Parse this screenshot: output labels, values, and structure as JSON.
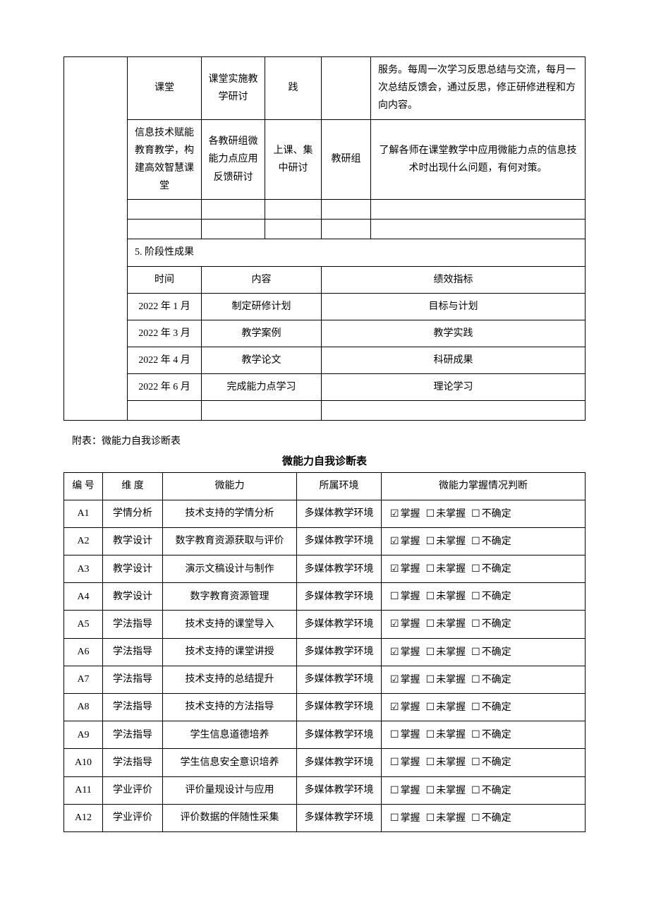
{
  "table1": {
    "row1": {
      "col2": "课堂",
      "col3": "课堂实施教学研讨",
      "col4": "践",
      "col5": "",
      "col6": "服务。每周一次学习反思总结与交流，每月一次总结反馈会，通过反思，修正研修进程和方向内容。"
    },
    "row2": {
      "col2": "信息技术赋能教育教学，构建高效智慧课堂",
      "col3": "各教研组微能力点应用反馈研讨",
      "col4": "上课、集中研讨",
      "col5": "教研组",
      "col6": "了解各师在课堂教学中应用微能力点的信息技术时出现什么问题，有何对策。"
    },
    "section_title": "5. 阶段性成果",
    "results_header": {
      "time": "时间",
      "content": "内容",
      "indicator": "绩效指标"
    },
    "results": [
      {
        "time": "2022 年 1 月",
        "content": "制定研修计划",
        "indicator": "目标与计划"
      },
      {
        "time": "2022 年 3 月",
        "content": "教学案例",
        "indicator": "教学实践"
      },
      {
        "time": "2022 年 4 月",
        "content": "教学论文",
        "indicator": "科研成果"
      },
      {
        "time": "2022 年 6 月",
        "content": "完成能力点学习",
        "indicator": "理论学习"
      }
    ]
  },
  "note": "附表：微能力自我诊断表",
  "table2": {
    "title": "微能力自我诊断表",
    "header": {
      "id": "编 号",
      "dim": "维  度",
      "ability": "微能力",
      "env": "所属环境",
      "status": "微能力掌握情况判断"
    },
    "status_labels": {
      "yes": "掌握",
      "no": "未掌握",
      "unsure": "不确定"
    },
    "rows": [
      {
        "id": "A1",
        "dim": "学情分析",
        "ability": "技术支持的学情分析",
        "env": "多媒体教学环境",
        "checked": 0
      },
      {
        "id": "A2",
        "dim": "教学设计",
        "ability": "数字教育资源获取与评价",
        "env": "多媒体教学环境",
        "checked": 0
      },
      {
        "id": "A3",
        "dim": "教学设计",
        "ability": "演示文稿设计与制作",
        "env": "多媒体教学环境",
        "checked": 0
      },
      {
        "id": "A4",
        "dim": "教学设计",
        "ability": "数字教育资源管理",
        "env": "多媒体教学环境",
        "checked": -1
      },
      {
        "id": "A5",
        "dim": "学法指导",
        "ability": "技术支持的课堂导入",
        "env": "多媒体教学环境",
        "checked": 0
      },
      {
        "id": "A6",
        "dim": "学法指导",
        "ability": "技术支持的课堂讲授",
        "env": "多媒体教学环境",
        "checked": 0
      },
      {
        "id": "A7",
        "dim": "学法指导",
        "ability": "技术支持的总结提升",
        "env": "多媒体教学环境",
        "checked": 0
      },
      {
        "id": "A8",
        "dim": "学法指导",
        "ability": "技术支持的方法指导",
        "env": "多媒体教学环境",
        "checked": 0
      },
      {
        "id": "A9",
        "dim": "学法指导",
        "ability": "学生信息道德培养",
        "env": "多媒体教学环境",
        "checked": -1
      },
      {
        "id": "A10",
        "dim": "学法指导",
        "ability": "学生信息安全意识培养",
        "env": "多媒体教学环境",
        "checked": -1
      },
      {
        "id": "A11",
        "dim": "学业评价",
        "ability": "评价量规设计与应用",
        "env": "多媒体教学环境",
        "checked": -1
      },
      {
        "id": "A12",
        "dim": "学业评价",
        "ability": "评价数据的伴随性采集",
        "env": "多媒体教学环境",
        "checked": -1
      }
    ]
  },
  "colors": {
    "border": "#000000",
    "background": "#ffffff",
    "text": "#000000"
  }
}
